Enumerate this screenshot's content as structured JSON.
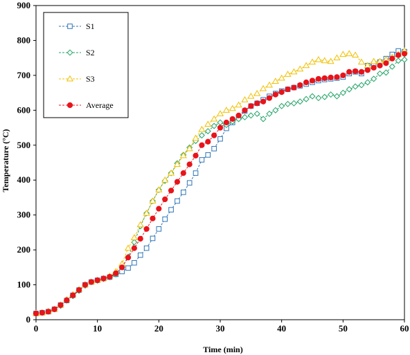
{
  "chart_data": {
    "type": "line",
    "title": "",
    "xlabel": "Time (min)",
    "ylabel": "Temperature (°C)",
    "xlim": [
      0,
      60
    ],
    "ylim": [
      0,
      900
    ],
    "xticks": [
      0,
      10,
      20,
      30,
      40,
      50,
      60
    ],
    "yticks": [
      0,
      100,
      200,
      300,
      400,
      500,
      600,
      700,
      800,
      900
    ],
    "grid": false,
    "legend_position": "top-left",
    "x": [
      0,
      1,
      2,
      3,
      4,
      5,
      6,
      7,
      8,
      9,
      10,
      11,
      12,
      13,
      14,
      15,
      16,
      17,
      18,
      19,
      20,
      21,
      22,
      23,
      24,
      25,
      26,
      27,
      28,
      29,
      30,
      31,
      32,
      33,
      34,
      35,
      36,
      37,
      38,
      39,
      40,
      41,
      42,
      43,
      44,
      45,
      46,
      47,
      48,
      49,
      50,
      51,
      52,
      53,
      54,
      55,
      56,
      57,
      58,
      59,
      60
    ],
    "series": [
      {
        "name": "S1",
        "color": "#2e75b6",
        "marker": "square",
        "values": [
          18,
          20,
          23,
          30,
          42,
          55,
          70,
          85,
          100,
          108,
          113,
          118,
          122,
          130,
          138,
          148,
          163,
          185,
          205,
          233,
          260,
          288,
          315,
          340,
          365,
          392,
          420,
          458,
          472,
          490,
          518,
          548,
          565,
          580,
          598,
          612,
          620,
          630,
          640,
          648,
          655,
          660,
          665,
          670,
          675,
          680,
          685,
          688,
          690,
          692,
          695,
          705,
          710,
          705,
          728,
          732,
          738,
          748,
          760,
          770,
          768
        ]
      },
      {
        "name": "S2",
        "color": "#21a366",
        "marker": "diamond",
        "values": [
          18,
          20,
          24,
          30,
          40,
          55,
          68,
          83,
          98,
          108,
          112,
          117,
          122,
          130,
          150,
          180,
          222,
          268,
          305,
          340,
          372,
          398,
          420,
          448,
          472,
          493,
          512,
          528,
          540,
          555,
          565,
          558,
          568,
          575,
          580,
          585,
          590,
          575,
          590,
          600,
          612,
          618,
          620,
          625,
          632,
          640,
          635,
          638,
          645,
          640,
          650,
          660,
          668,
          672,
          680,
          690,
          705,
          708,
          725,
          742,
          745
        ]
      },
      {
        "name": "S3",
        "color": "#f0c000",
        "marker": "triangle",
        "values": [
          18,
          20,
          24,
          30,
          42,
          57,
          72,
          86,
          100,
          108,
          113,
          118,
          125,
          138,
          160,
          205,
          235,
          272,
          305,
          340,
          372,
          400,
          420,
          445,
          470,
          490,
          520,
          545,
          560,
          575,
          590,
          600,
          605,
          615,
          630,
          640,
          648,
          662,
          672,
          683,
          692,
          703,
          710,
          718,
          728,
          738,
          745,
          742,
          740,
          750,
          760,
          762,
          758,
          738,
          728,
          740,
          740,
          745,
          752,
          760,
          770
        ]
      },
      {
        "name": "Average",
        "color": "#e8141b",
        "marker": "circle",
        "values": [
          18,
          20,
          23,
          30,
          42,
          56,
          70,
          85,
          100,
          108,
          113,
          118,
          123,
          133,
          150,
          178,
          205,
          232,
          260,
          290,
          318,
          345,
          370,
          395,
          420,
          445,
          470,
          500,
          510,
          528,
          550,
          565,
          575,
          585,
          600,
          612,
          620,
          625,
          635,
          645,
          652,
          660,
          665,
          672,
          680,
          685,
          690,
          692,
          694,
          695,
          700,
          710,
          712,
          710,
          715,
          722,
          728,
          735,
          748,
          758,
          762
        ]
      }
    ]
  }
}
